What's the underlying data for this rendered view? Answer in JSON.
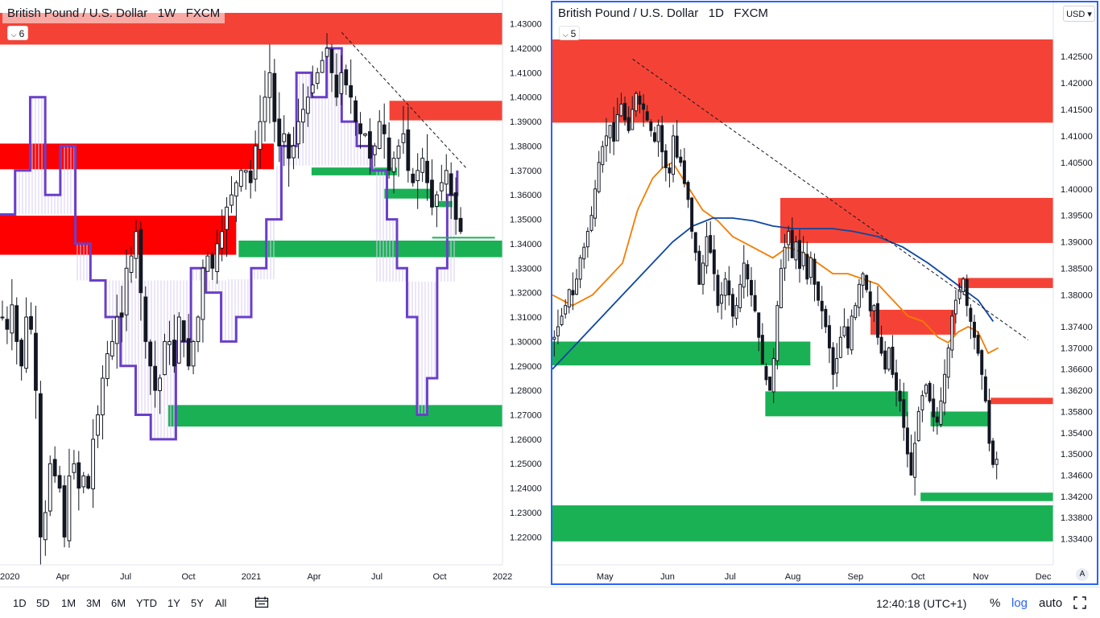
{
  "colors": {
    "supply_zone": "#f44336",
    "supply_zone_left": "#ff0000",
    "demand_zone": "#1ab155",
    "candle": "#131722",
    "ichimoku_outline": "#6a3fc9",
    "ichimoku_fill": "#d9cdf2",
    "ema_orange": "#f57c00",
    "ema_blue": "#0d47a1",
    "active_border": "#2962ff"
  },
  "left_chart": {
    "title": "British Pound / U.S. Dollar   1W   FXCM",
    "indicator_count": "6",
    "chevron_icon": "chevron-down-icon"
  },
  "right_chart": {
    "title": "British Pound / U.S. Dollar   1D   FXCM",
    "indicator_count": "5",
    "currency": "USD",
    "chevron_icon": "chevron-down-icon",
    "auto_scale_label": "A"
  },
  "bottom_bar": {
    "timeframes": [
      "1D",
      "5D",
      "1M",
      "3M",
      "6M",
      "YTD",
      "1Y",
      "5Y",
      "All"
    ],
    "compare_icon": "calendar-range-icon",
    "time": "12:40:18 (UTC+1)",
    "percent": "%",
    "log": "log",
    "auto": "auto",
    "fullscreen_icon": "fullscreen-icon"
  },
  "chart_data": [
    {
      "type": "candlestick",
      "symbol": "GBPUSD",
      "timeframe": "1W",
      "x_ticks": [
        "2020",
        "Apr",
        "Jul",
        "Oct",
        "2021",
        "Apr",
        "Jul",
        "Oct",
        "2022"
      ],
      "y_ticks": [
        1.43,
        1.42,
        1.41,
        1.4,
        1.39,
        1.38,
        1.37,
        1.36,
        1.35,
        1.34,
        1.33,
        1.32,
        1.31,
        1.3,
        1.29,
        1.28,
        1.27,
        1.26,
        1.25,
        1.24,
        1.23,
        1.22
      ],
      "ylim": [
        1.2155,
        1.4335
      ],
      "xlim": [
        0,
        100
      ],
      "tick_positions": [
        0,
        12.5,
        25,
        37.5,
        50,
        62.5,
        75,
        87.5,
        100
      ],
      "zones": [
        {
          "kind": "supply",
          "x0": 0,
          "x1": 100,
          "y0": 1.4215,
          "y1": 1.4355
        },
        {
          "kind": "supply",
          "x0": 77.5,
          "x1": 100,
          "y0": 1.3905,
          "y1": 1.3985
        },
        {
          "kind": "supply-strong",
          "x0": 0,
          "x1": 54.5,
          "y0": 1.3705,
          "y1": 1.381
        },
        {
          "kind": "supply-strong",
          "x0": 0,
          "x1": 47,
          "y0": 1.3355,
          "y1": 1.3515
        },
        {
          "kind": "demand",
          "x0": 62,
          "x1": 79,
          "y0": 1.368,
          "y1": 1.3712
        },
        {
          "kind": "demand",
          "x0": 76.5,
          "x1": 86,
          "y0": 1.3585,
          "y1": 1.3625
        },
        {
          "kind": "demand",
          "x0": 86.5,
          "x1": 90,
          "y0": 1.355,
          "y1": 1.3575
        },
        {
          "kind": "demand",
          "x0": 47.5,
          "x1": 100,
          "y0": 1.3345,
          "y1": 1.3413
        },
        {
          "kind": "demand",
          "x0": 33.5,
          "x1": 100,
          "y0": 1.2652,
          "y1": 1.274
        }
      ],
      "trendline": {
        "x": [
          68,
          93
        ],
        "y": [
          1.4265,
          1.3705
        ]
      },
      "close_line": {
        "x": [
          86,
          98.5
        ],
        "y": [
          1.3425,
          1.3425
        ]
      },
      "cloud_edge": {
        "x": [
          0,
          3,
          6,
          9,
          12,
          15,
          18,
          21,
          24,
          27,
          30,
          33,
          35,
          38,
          41,
          44,
          47,
          50,
          53,
          56,
          59,
          62,
          65,
          68,
          71,
          74,
          77,
          79,
          81,
          83,
          85,
          87,
          89,
          91
        ],
        "y": [
          1.352,
          1.37,
          1.4,
          1.36,
          1.38,
          1.34,
          1.325,
          1.31,
          1.29,
          1.27,
          1.26,
          1.26,
          1.3,
          1.33,
          1.32,
          1.3,
          1.31,
          1.33,
          1.35,
          1.38,
          1.41,
          1.4,
          1.42,
          1.39,
          1.38,
          1.37,
          1.35,
          1.33,
          1.31,
          1.27,
          1.285,
          1.33,
          1.36,
          1.37
        ]
      },
      "cloud_base": [
        {
          "x0": 0,
          "x1": 15,
          "y": 1.352
        },
        {
          "x0": 15,
          "x1": 33,
          "y": 1.325
        },
        {
          "x0": 33,
          "x1": 45,
          "y": 1.325
        },
        {
          "x0": 45,
          "x1": 55,
          "y": 1.3255
        },
        {
          "x0": 55,
          "x1": 75,
          "y": 1.372
        },
        {
          "x0": 75,
          "x1": 92,
          "y": 1.3245
        }
      ],
      "candles_close": [
        1.31,
        1.305,
        1.315,
        1.3,
        1.29,
        1.31,
        1.305,
        1.28,
        1.22,
        1.23,
        1.25,
        1.245,
        1.24,
        1.22,
        1.245,
        1.25,
        1.24,
        1.245,
        1.24,
        1.26,
        1.27,
        1.285,
        1.295,
        1.3,
        1.31,
        1.31,
        1.33,
        1.335,
        1.345,
        1.32,
        1.3,
        1.29,
        1.28,
        1.285,
        1.3,
        1.3,
        1.29,
        1.31,
        1.3,
        1.29,
        1.3,
        1.31,
        1.33,
        1.335,
        1.33,
        1.34,
        1.345,
        1.355,
        1.36,
        1.365,
        1.37,
        1.37,
        1.365,
        1.38,
        1.39,
        1.4,
        1.41,
        1.39,
        1.38,
        1.385,
        1.375,
        1.38,
        1.39,
        1.395,
        1.4,
        1.405,
        1.41,
        1.415,
        1.42,
        1.41,
        1.4,
        1.41,
        1.405,
        1.4,
        1.39,
        1.385,
        1.385,
        1.375,
        1.38,
        1.39,
        1.385,
        1.37,
        1.375,
        1.38,
        1.385,
        1.37,
        1.365,
        1.37,
        1.375,
        1.365,
        1.355,
        1.36,
        1.365,
        1.37,
        1.36,
        1.35,
        1.345
      ]
    },
    {
      "type": "candlestick",
      "symbol": "GBPUSD",
      "timeframe": "1D",
      "x_ticks": [
        "May",
        "Jun",
        "Jul",
        "Aug",
        "Sep",
        "Oct",
        "Nov",
        "Dec"
      ],
      "y_ticks": [
        1.425,
        1.42,
        1.415,
        1.41,
        1.405,
        1.4,
        1.395,
        1.39,
        1.385,
        1.38,
        1.374,
        1.37,
        1.366,
        1.362,
        1.358,
        1.354,
        1.35,
        1.346,
        1.342,
        1.338,
        1.334
      ],
      "ylim": [
        1.3318,
        1.4282
      ],
      "xlim": [
        0,
        100
      ],
      "tick_positions": [
        10.5,
        23,
        35.5,
        48,
        60.5,
        73,
        85.5,
        98
      ],
      "zones": [
        {
          "kind": "supply",
          "x0": 0,
          "x1": 100,
          "y0": 1.4125,
          "y1": 1.4282
        },
        {
          "kind": "supply",
          "x0": 45.5,
          "x1": 100,
          "y0": 1.3898,
          "y1": 1.3983
        },
        {
          "kind": "supply",
          "x0": 81,
          "x1": 100,
          "y0": 1.3813,
          "y1": 1.3832
        },
        {
          "kind": "supply",
          "x0": 63.5,
          "x1": 80.5,
          "y0": 1.3725,
          "y1": 1.3772
        },
        {
          "kind": "supply",
          "x0": 87.5,
          "x1": 100,
          "y0": 1.3594,
          "y1": 1.3606
        },
        {
          "kind": "demand",
          "x0": 0,
          "x1": 51.5,
          "y0": 1.3667,
          "y1": 1.3712
        },
        {
          "kind": "demand",
          "x0": 42.5,
          "x1": 71,
          "y0": 1.3571,
          "y1": 1.3618
        },
        {
          "kind": "demand",
          "x0": 75.5,
          "x1": 87.5,
          "y0": 1.3552,
          "y1": 1.358
        },
        {
          "kind": "demand",
          "x0": 73.5,
          "x1": 100,
          "y0": 1.3411,
          "y1": 1.3427
        },
        {
          "kind": "demand",
          "x0": 0,
          "x1": 100,
          "y0": 1.3335,
          "y1": 1.3403
        }
      ],
      "trendline": {
        "x": [
          16,
          95
        ],
        "y": [
          1.4245,
          1.3715
        ]
      },
      "ema_fast": {
        "x": [
          0,
          4,
          8,
          11,
          14,
          17,
          20,
          22,
          24,
          26,
          28,
          30,
          33,
          36,
          40,
          44,
          47,
          50,
          53,
          56,
          59,
          62,
          65,
          68,
          71,
          74,
          77,
          79,
          81,
          83,
          85,
          87,
          89
        ],
        "y": [
          1.38,
          1.378,
          1.38,
          1.383,
          1.386,
          1.396,
          1.402,
          1.404,
          1.405,
          1.402,
          1.399,
          1.396,
          1.394,
          1.391,
          1.389,
          1.387,
          1.389,
          1.388,
          1.386,
          1.384,
          1.384,
          1.383,
          1.382,
          1.379,
          1.376,
          1.375,
          1.372,
          1.371,
          1.373,
          1.374,
          1.373,
          1.369,
          1.37
        ]
      },
      "ema_slow": {
        "x": [
          0,
          6,
          12,
          18,
          24,
          28,
          32,
          36,
          40,
          44,
          48,
          52,
          56,
          60,
          65,
          70,
          75,
          80,
          85,
          88
        ],
        "y": [
          1.366,
          1.372,
          1.378,
          1.384,
          1.39,
          1.393,
          1.3945,
          1.3945,
          1.394,
          1.393,
          1.3925,
          1.3925,
          1.3925,
          1.392,
          1.391,
          1.389,
          1.386,
          1.3825,
          1.379,
          1.375
        ]
      },
      "candles_close": [
        1.372,
        1.374,
        1.376,
        1.378,
        1.381,
        1.38,
        1.383,
        1.387,
        1.389,
        1.392,
        1.395,
        1.4,
        1.405,
        1.408,
        1.41,
        1.412,
        1.409,
        1.414,
        1.416,
        1.413,
        1.411,
        1.415,
        1.418,
        1.416,
        1.415,
        1.413,
        1.411,
        1.409,
        1.412,
        1.407,
        1.404,
        1.403,
        1.41,
        1.406,
        1.405,
        1.401,
        1.398,
        1.392,
        1.388,
        1.382,
        1.386,
        1.391,
        1.388,
        1.384,
        1.378,
        1.38,
        1.383,
        1.38,
        1.376,
        1.378,
        1.382,
        1.386,
        1.383,
        1.38,
        1.377,
        1.372,
        1.367,
        1.364,
        1.362,
        1.368,
        1.378,
        1.385,
        1.389,
        1.392,
        1.387,
        1.39,
        1.385,
        1.388,
        1.383,
        1.387,
        1.382,
        1.379,
        1.377,
        1.374,
        1.37,
        1.365,
        1.368,
        1.372,
        1.374,
        1.37,
        1.376,
        1.378,
        1.382,
        1.384,
        1.381,
        1.377,
        1.378,
        1.372,
        1.369,
        1.366,
        1.37,
        1.365,
        1.362,
        1.36,
        1.355,
        1.35,
        1.346,
        1.352,
        1.358,
        1.361,
        1.363,
        1.36,
        1.357,
        1.356,
        1.36,
        1.365,
        1.37,
        1.376,
        1.379,
        1.381,
        1.383,
        1.378,
        1.375,
        1.372,
        1.369,
        1.365,
        1.36,
        1.352,
        1.348,
        1.349
      ]
    }
  ]
}
